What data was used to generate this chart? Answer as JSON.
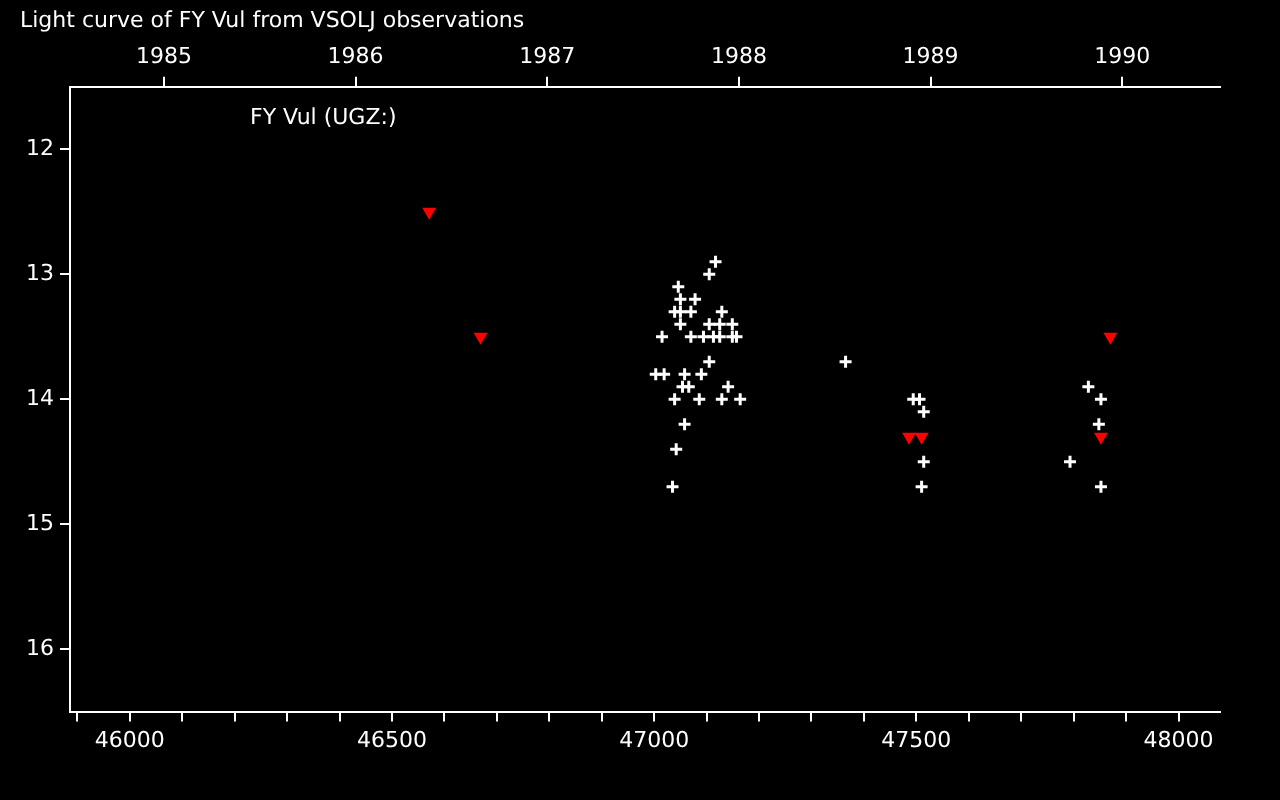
{
  "chart_data": {
    "type": "scatter",
    "title": "Light curve of FY Vul from VSOLJ observations",
    "annotations": [
      "FY Vul (UGZ:)"
    ],
    "xlim": [
      45886,
      48079
    ],
    "xticks": [
      {
        "value": 45900,
        "label": null
      },
      46000,
      {
        "value": 46100,
        "label": null
      },
      {
        "value": 46200,
        "label": null
      },
      {
        "value": 46300,
        "label": null
      },
      {
        "value": 46400,
        "label": null
      },
      46500,
      {
        "value": 46600,
        "label": null
      },
      {
        "value": 46700,
        "label": null
      },
      {
        "value": 46800,
        "label": null
      },
      {
        "value": 46900,
        "label": null
      },
      47000,
      {
        "value": 47100,
        "label": null
      },
      {
        "value": 47200,
        "label": null
      },
      {
        "value": 47300,
        "label": null
      },
      {
        "value": 47400,
        "label": null
      },
      47500,
      {
        "value": 47600,
        "label": null
      },
      {
        "value": 47700,
        "label": null
      },
      {
        "value": 47800,
        "label": null
      },
      {
        "value": 47900,
        "label": null
      },
      48000
    ],
    "x2lim": [
      1984.51,
      1990.51
    ],
    "x2ticks": [
      1985,
      1986,
      1987,
      1988,
      1989,
      1990
    ],
    "ylim": [
      16.5,
      11.5
    ],
    "yticks": [
      12,
      13,
      14,
      15,
      16
    ],
    "grid": false,
    "legend": false,
    "series": [
      {
        "color": "#ffffff",
        "marker": "cross",
        "x": [
          47117,
          47105,
          47046,
          47050,
          47078,
          47039,
          47050,
          47070,
          47129,
          47050,
          47105,
          47125,
          47149,
          47015,
          47070,
          47094,
          47113,
          47125,
          47149,
          47157,
          47105,
          47003,
          47019,
          47058,
          47090,
          47054,
          47066,
          47141,
          47039,
          47086,
          47129,
          47164,
          47058,
          47042,
          47035,
          47365,
          47494,
          47506,
          47514,
          47514,
          47510,
          47828,
          47852,
          47848,
          47793,
          47852
        ],
        "values": [
          12.9,
          13.0,
          13.1,
          13.2,
          13.2,
          13.3,
          13.3,
          13.3,
          13.3,
          13.4,
          13.4,
          13.4,
          13.4,
          13.5,
          13.5,
          13.5,
          13.5,
          13.5,
          13.5,
          13.5,
          13.7,
          13.8,
          13.8,
          13.8,
          13.8,
          13.9,
          13.9,
          13.9,
          14.0,
          14.0,
          14.0,
          14.0,
          14.2,
          14.4,
          14.7,
          13.7,
          14.0,
          14.0,
          14.1,
          14.5,
          14.7,
          13.9,
          14.0,
          14.2,
          14.5,
          14.7
        ]
      },
      {
        "color": "#ff0000",
        "marker": "triangle",
        "x": [
          46571,
          46669,
          47486,
          47510,
          47852,
          47870
        ],
        "values": [
          12.5,
          13.5,
          14.3,
          14.3,
          14.3,
          13.5
        ]
      }
    ]
  }
}
